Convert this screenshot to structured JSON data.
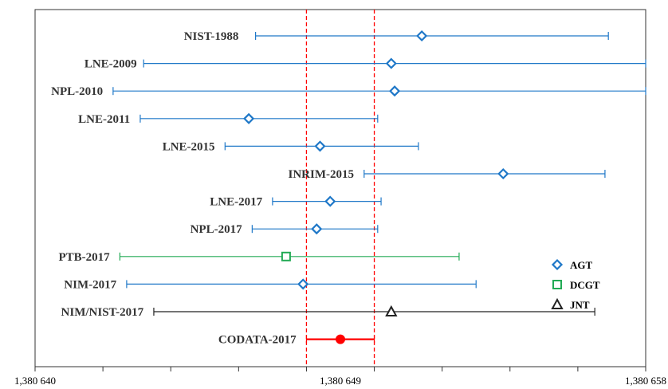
{
  "chart_data": {
    "type": "scatter",
    "title": "",
    "xlabel": "",
    "ylabel": "",
    "xlim": [
      1380640,
      1380658
    ],
    "x_ticks": [
      1380640,
      1380649,
      1380658
    ],
    "x_tick_labels": [
      "1,380 640",
      "1,380 649",
      "1,380 658"
    ],
    "grid": false,
    "legend_position": "right",
    "reference_band": {
      "lower": 1380648.0,
      "upper": 1380650.0,
      "color": "#ff0000",
      "style": "dashed"
    },
    "series": [
      {
        "name": "AGT",
        "marker": "diamond",
        "color": "#1f78c8"
      },
      {
        "name": "DCGT",
        "marker": "square",
        "color": "#22aa55"
      },
      {
        "name": "JNT",
        "marker": "triangle",
        "color": "#222222"
      },
      {
        "name": "",
        "marker": "circle",
        "color": "#ff0000"
      }
    ],
    "points": [
      {
        "label": "NIST-1988",
        "series": "AGT",
        "value": 1380651.4,
        "low": 1380646.5,
        "high": 1380656.9,
        "label_x": 1380646.0
      },
      {
        "label": "LNE-2009",
        "series": "AGT",
        "value": 1380650.5,
        "low": 1380643.2,
        "high": 1380658.5,
        "label_x": 1380643.0
      },
      {
        "label": "NPL-2010",
        "series": "AGT",
        "value": 1380650.6,
        "low": 1380642.3,
        "high": 1380664.5,
        "label_x": 1380642.0
      },
      {
        "label": "LNE-2011",
        "series": "AGT",
        "value": 1380646.3,
        "low": 1380643.1,
        "high": 1380650.1,
        "label_x": 1380642.8
      },
      {
        "label": "LNE-2015",
        "series": "AGT",
        "value": 1380648.4,
        "low": 1380645.6,
        "high": 1380651.3,
        "label_x": 1380645.3
      },
      {
        "label": "INRIM-2015",
        "series": "AGT",
        "value": 1380653.8,
        "low": 1380649.7,
        "high": 1380656.8,
        "label_x": 1380649.4
      },
      {
        "label": "LNE-2017",
        "series": "AGT",
        "value": 1380648.7,
        "low": 1380647.0,
        "high": 1380650.2,
        "label_x": 1380646.7
      },
      {
        "label": "NPL-2017",
        "series": "AGT",
        "value": 1380648.3,
        "low": 1380646.4,
        "high": 1380650.1,
        "label_x": 1380646.1
      },
      {
        "label": "PTB-2017",
        "series": "DCGT",
        "value": 1380647.4,
        "low": 1380642.5,
        "high": 1380652.5,
        "label_x": 1380642.2
      },
      {
        "label": "NIM-2017",
        "series": "AGT",
        "value": 1380647.9,
        "low": 1380642.7,
        "high": 1380653.0,
        "label_x": 1380642.4
      },
      {
        "label": "NIM/NIST-2017",
        "series": "JNT",
        "value": 1380650.5,
        "low": 1380643.5,
        "high": 1380656.5,
        "label_x": 1380643.2
      },
      {
        "label": "CODATA-2017",
        "series": "",
        "value": 1380649.0,
        "low": 1380648.0,
        "high": 1380650.0,
        "label_x": 1380647.7
      }
    ]
  }
}
